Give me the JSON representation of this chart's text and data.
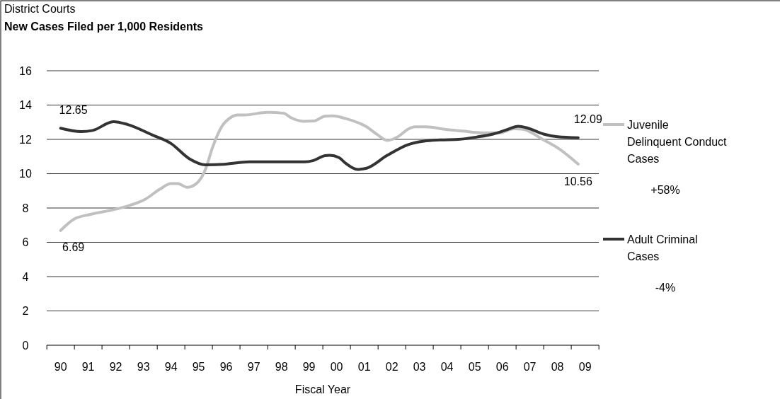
{
  "chart_data": {
    "type": "line",
    "title": "District Courts",
    "subtitle": "New Cases Filed per 1,000 Residents",
    "xlabel": "Fiscal Year",
    "xlim": [
      "1989-07",
      "2009-07"
    ],
    "xticks": [
      {
        "value": "1990",
        "label": "90"
      },
      {
        "value": "1991",
        "label": "91"
      },
      {
        "value": "1992",
        "label": "92"
      },
      {
        "value": "1993",
        "label": "93"
      },
      {
        "value": "1994",
        "label": "94"
      },
      {
        "value": "1995",
        "label": "95"
      },
      {
        "value": "1996",
        "label": "96"
      },
      {
        "value": "1997",
        "label": "97"
      },
      {
        "value": "1998",
        "label": "98"
      },
      {
        "value": "1999",
        "label": "99"
      },
      {
        "value": "2000",
        "label": "00"
      },
      {
        "value": "2001",
        "label": "01"
      },
      {
        "value": "2002",
        "label": "02"
      },
      {
        "value": "2003",
        "label": "03"
      },
      {
        "value": "2004",
        "label": "04"
      },
      {
        "value": "2005",
        "label": "05"
      },
      {
        "value": "2006",
        "label": "06"
      },
      {
        "value": "2007",
        "label": "07"
      },
      {
        "value": "2008",
        "label": "08"
      },
      {
        "value": "2009",
        "label": "09"
      }
    ],
    "ylim": [
      0,
      16
    ],
    "yticks": [
      0,
      2,
      4,
      6,
      8,
      10,
      12,
      14,
      16
    ],
    "grid": "y",
    "legend": "right",
    "series": [
      {
        "name": "Juvenile Delinquent Conduct Cases",
        "color": "#c0c0c0",
        "x": [
          "1990-01",
          "1990-07",
          "1991-02",
          "1991-12",
          "1992-06",
          "1993-02",
          "1993-08",
          "1994-01",
          "1994-04",
          "1994-08",
          "1994-12",
          "1995-04",
          "1995-07",
          "1995-11",
          "1996-03",
          "1996-06",
          "1996-09",
          "1997-07",
          "1998-02",
          "1998-05",
          "1998-11",
          "1999-03",
          "1999-08",
          "1999-11",
          "2000-05",
          "2001-02",
          "2001-07",
          "2001-11",
          "2002-04",
          "2002-08",
          "2002-11",
          "2003-04",
          "2003-12",
          "2004-08",
          "2005-04",
          "2005-12",
          "2006-06",
          "2006-10",
          "2007-07",
          "2008-02",
          "2008-10"
        ],
        "values": [
          6.69,
          7.36,
          7.63,
          7.9,
          8.11,
          8.53,
          9.08,
          9.42,
          9.42,
          9.21,
          9.42,
          10.25,
          11.49,
          12.73,
          13.28,
          13.42,
          13.42,
          13.58,
          13.52,
          13.28,
          13.05,
          13.07,
          13.35,
          13.37,
          13.21,
          12.73,
          12.25,
          11.94,
          12.18,
          12.59,
          12.73,
          12.73,
          12.59,
          12.48,
          12.38,
          12.38,
          12.62,
          12.59,
          11.97,
          11.42,
          10.56
        ]
      },
      {
        "name": "Adult Criminal Cases",
        "color": "#333333",
        "x": [
          "1990-01",
          "1990-10",
          "1991-03",
          "1991-12",
          "1992-06",
          "1993-05",
          "1994-01",
          "1994-09",
          "1995-04",
          "1995-12",
          "1996-11",
          "1998-11",
          "1999-03",
          "1999-08",
          "1999-10",
          "2000-02",
          "2000-05",
          "2000-10",
          "2001-02",
          "2001-11",
          "2002-08",
          "2003-03",
          "2003-10",
          "2004-06",
          "2005-02",
          "2005-09",
          "2006-03",
          "2006-08",
          "2006-12",
          "2007-07",
          "2008-01",
          "2008-10"
        ],
        "values": [
          12.65,
          12.45,
          12.52,
          13.03,
          12.87,
          12.25,
          11.76,
          10.87,
          10.52,
          10.55,
          10.69,
          10.69,
          10.77,
          11.05,
          11.07,
          10.94,
          10.6,
          10.25,
          10.32,
          11.07,
          11.69,
          11.9,
          11.97,
          12.0,
          12.14,
          12.31,
          12.56,
          12.76,
          12.66,
          12.31,
          12.15,
          12.09
        ]
      }
    ],
    "annotations": [
      {
        "text": "12.65",
        "x": "1990-01",
        "y": 12.65
      },
      {
        "text": "6.69",
        "x": "1990-01",
        "y": 6.69
      },
      {
        "text": "12.09",
        "x": "2008-10",
        "y": 12.09
      },
      {
        "text": "10.56",
        "x": "2008-10",
        "y": 10.56
      },
      "+58%",
      "-4%"
    ]
  }
}
